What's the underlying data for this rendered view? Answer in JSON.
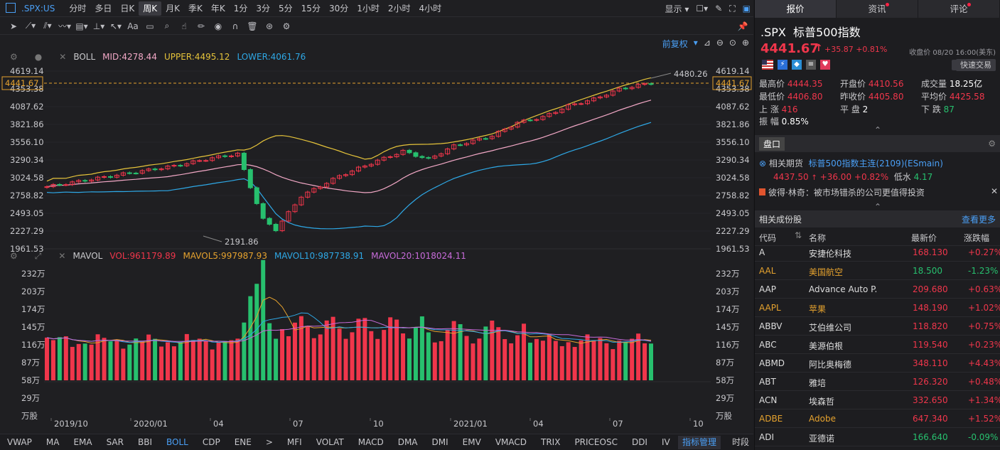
{
  "toolbar": {
    "symbol": ".SPX:US",
    "timeframes": [
      "分时",
      "多日",
      "日K",
      "周K",
      "月K",
      "季K",
      "年K",
      "1分",
      "3分",
      "5分",
      "15分",
      "30分",
      "1小时",
      "2小时",
      "4小时"
    ],
    "active_tf": "周K",
    "display": "显示"
  },
  "boll": {
    "name": "BOLL",
    "mid": "MID:4278.44",
    "upper": "UPPER:4495.12",
    "lower": "LOWER:4061.76",
    "adj": "前复权"
  },
  "mavol": {
    "name": "MAVOL",
    "vol": "VOL:961179.89",
    "m5": "MAVOL5:997987.93",
    "m10": "MAVOL10:987738.91",
    "m20": "MAVOL20:1018024.11"
  },
  "price_axis": [
    "4619.14",
    "4353.38",
    "4087.62",
    "3821.86",
    "3556.10",
    "3290.34",
    "3024.58",
    "2758.82",
    "2493.05",
    "2227.29",
    "1961.53"
  ],
  "current_tag": "4441.67",
  "high_label": "4480.26",
  "low_label": "2191.86",
  "vol_axis": [
    "232万",
    "203万",
    "174万",
    "145万",
    "116万",
    "87万",
    "58万",
    "29万",
    "万股"
  ],
  "time_axis": [
    "2019/10",
    "2020/01",
    "04",
    "07",
    "10",
    "2021/01",
    "04",
    "07",
    "10"
  ],
  "colors": {
    "up": "#f0364b",
    "down": "#27c06e",
    "mid": "#f2a8c6",
    "upper": "#e5c33a",
    "lower": "#2ea8e6",
    "m5": "#e5a22e",
    "m10": "#2ea8e6",
    "m20": "#c76bd9"
  },
  "indicators": [
    "VWAP",
    "MA",
    "EMA",
    "SAR",
    "BBI",
    "BOLL",
    "CDP",
    "ENE",
    ">",
    "MFI",
    "VOLAT",
    "MACD",
    "DMA",
    "DMI",
    "EMV",
    "VMACD",
    "TRIX",
    "PRICEOSC",
    "DDI",
    "IV"
  ],
  "active_indicator": "BOLL",
  "ind_manage": "指标管理",
  "side": "时段",
  "right_tabs": [
    "报价",
    "资讯",
    "评论"
  ],
  "quote": {
    "code": ".SPX",
    "name": "标普500指数",
    "price": "4441.67",
    "arrow": "↑",
    "change": "+35.87",
    "pct": "+0.81%",
    "close_time": "收盘价 08/20 16:00(美东)",
    "trade": "快速交易",
    "stats": [
      [
        "最高价",
        "4444.35",
        "开盘价",
        "4410.56",
        "成交量",
        "18.25亿"
      ],
      [
        "最低价",
        "4406.80",
        "昨收价",
        "4405.80",
        "平均价",
        "4425.58"
      ]
    ],
    "up_label": "上 涨",
    "up": "416",
    "flat_label": "平 盘",
    "flat": "2",
    "down_label": "下 跌",
    "down": "87",
    "amp_label": "振 幅",
    "amp": "0.85%"
  },
  "panel": {
    "title": "盘口",
    "fut_label": "相关期货",
    "fut_name": "标普500指数主连(2109)(ESmain)",
    "fut_price": "4437.50",
    "fut_chg": "+36.00",
    "fut_pct": "+0.82%",
    "fut_water": "低水",
    "fut_water_val": "4.17",
    "news": "彼得·林奇：被市场错杀的公司更值得投资"
  },
  "stocks": {
    "title": "相关成份股",
    "more": "查看更多",
    "headers": [
      "代码",
      "名称",
      "最新价",
      "涨跌幅"
    ],
    "rows": [
      {
        "code": "A",
        "name": "安捷伦科技",
        "price": "168.130",
        "pct": "+0.27%",
        "hl": false
      },
      {
        "code": "AAL",
        "name": "美国航空",
        "price": "18.500",
        "pct": "-1.23%",
        "hl": true
      },
      {
        "code": "AAP",
        "name": "Advance Auto P...",
        "price": "209.680",
        "pct": "+0.63%",
        "hl": false
      },
      {
        "code": "AAPL",
        "name": "苹果",
        "price": "148.190",
        "pct": "+1.02%",
        "hl": true
      },
      {
        "code": "ABBV",
        "name": "艾伯维公司",
        "price": "118.820",
        "pct": "+0.75%",
        "hl": false
      },
      {
        "code": "ABC",
        "name": "美源伯根",
        "price": "119.540",
        "pct": "+0.23%",
        "hl": false
      },
      {
        "code": "ABMD",
        "name": "阿比奥梅德",
        "price": "348.110",
        "pct": "+4.43%",
        "hl": false
      },
      {
        "code": "ABT",
        "name": "雅培",
        "price": "126.320",
        "pct": "+0.48%",
        "hl": false
      },
      {
        "code": "ACN",
        "name": "埃森哲",
        "price": "332.650",
        "pct": "+1.34%",
        "hl": false
      },
      {
        "code": "ADBE",
        "name": "Adobe",
        "price": "647.340",
        "pct": "+1.52%",
        "hl": true
      },
      {
        "code": "ADI",
        "name": "亚德诺",
        "price": "166.640",
        "pct": "-0.09%",
        "hl": false
      }
    ]
  }
}
